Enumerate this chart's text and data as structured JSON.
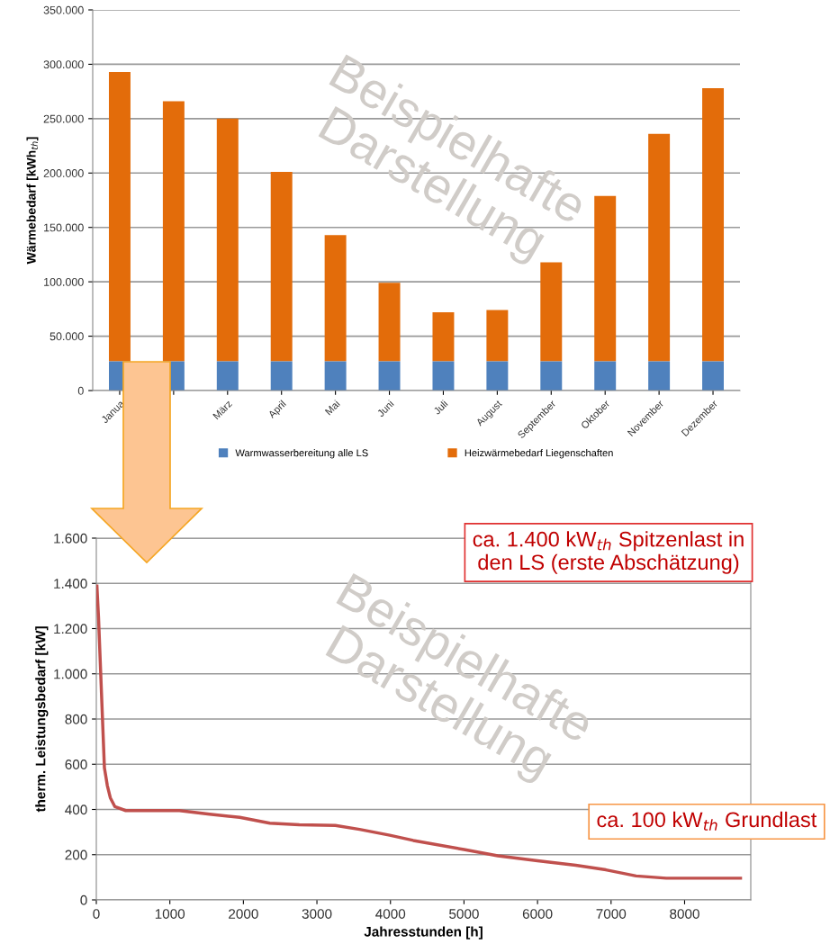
{
  "chart_data": [
    {
      "type": "bar",
      "stacked": true,
      "ylabel": "Wärmebedarf [kWh$_{th}$]",
      "categories": [
        "Janua",
        null,
        "März",
        "April",
        "Mai",
        "Juni",
        "Juli",
        "August",
        "September",
        "Oktober",
        "November",
        "Dezember"
      ],
      "series": [
        {
          "name": "Warmwasserbereitung alle LS",
          "color": "#4f81bd",
          "values": [
            27000,
            27000,
            27000,
            27000,
            27000,
            27000,
            27000,
            27000,
            27000,
            27000,
            27000,
            27000
          ]
        },
        {
          "name": "Heizwärmebedarf Liegenschaften",
          "color": "#e36c0a",
          "values": [
            266000,
            239000,
            223000,
            174000,
            116000,
            72000,
            45000,
            47000,
            91000,
            152000,
            209000,
            251000
          ]
        }
      ],
      "ylim": [
        0,
        350000
      ],
      "yticks": [
        {
          "value": 0,
          "label": "0"
        },
        {
          "value": 50000,
          "label": "50.000"
        },
        {
          "value": 100000,
          "label": "100.000"
        },
        {
          "value": 150000,
          "label": "150.000"
        },
        {
          "value": 200000,
          "label": "200.000"
        },
        {
          "value": 250000,
          "label": "250.000"
        },
        {
          "value": 300000,
          "label": "300.000"
        },
        {
          "value": 350000,
          "label": "350.000"
        }
      ],
      "grid": "y",
      "legend": "bottom",
      "annotations": [
        "Beispielhafte\nDarstellung"
      ]
    },
    {
      "type": "line",
      "xlabel": "Jahresstunden [h]",
      "ylabel": "therm. Leistungsbedarf [kW]",
      "series": [
        {
          "color": "#c0504d",
          "x": [
            8,
            30,
            70,
            110,
            130,
            150,
            190,
            253,
            400,
            720,
            1130,
            1540,
            1950,
            2360,
            2760,
            3250,
            3580,
            3990,
            4310,
            5000,
            5460,
            6000,
            6520,
            6930,
            7340,
            7750,
            8150,
            8760
          ],
          "values": [
            1388,
            1248,
            916,
            584,
            545,
            505,
            452,
            412,
            395,
            395,
            395,
            379,
            365,
            339,
            332,
            329,
            312,
            286,
            263,
            223,
            195,
            173,
            153,
            133,
            106,
            96,
            96,
            96
          ]
        }
      ],
      "xlim": [
        0,
        8900
      ],
      "xticks": [
        0,
        1000,
        2000,
        3000,
        4000,
        5000,
        6000,
        7000,
        8000
      ],
      "ylim": [
        0,
        1600
      ],
      "yticks": [
        {
          "value": 0,
          "label": "0"
        },
        {
          "value": 200,
          "label": "200"
        },
        {
          "value": 400,
          "label": "400"
        },
        {
          "value": 600,
          "label": "600"
        },
        {
          "value": 800,
          "label": "800"
        },
        {
          "value": 1000,
          "label": "1.000"
        },
        {
          "value": 1200,
          "label": "1.200"
        },
        {
          "value": 1400,
          "label": "1.400"
        },
        {
          "value": 1600,
          "label": "1.600"
        }
      ],
      "grid": "y",
      "line_style": "solid",
      "marker": "none",
      "annotations": [
        "Beispielhafte\nDarstellung",
        "ca. 1.400 kW$_{th}$ Spitzenlast in\nden LS (erste Abschätzung)",
        "ca. 100 kW$_{th}$ Grundlast"
      ]
    }
  ]
}
